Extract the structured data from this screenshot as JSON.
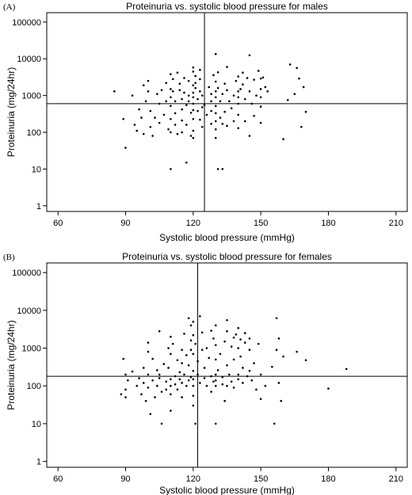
{
  "chart_data": [
    {
      "type": "scatter",
      "panel_label": "(A)",
      "title": "Proteinuria vs. systolic blood pressure for males",
      "xlabel": "Systolic blood pressure (mmHg)",
      "ylabel": "Proteinuria (mg/24hr)",
      "xlim": [
        55,
        215
      ],
      "xticks": [
        60,
        90,
        120,
        150,
        180,
        210
      ],
      "yscale": "log",
      "ylim": [
        0.7,
        180000
      ],
      "yticks": [
        1,
        10,
        100,
        1000,
        10000,
        100000
      ],
      "ytick_labels": [
        "1",
        "10",
        "100",
        "1000",
        "10000",
        "100000"
      ],
      "reference_lines": {
        "x": 125,
        "y": 600
      },
      "grid": false,
      "points": [
        [
          85,
          1300
        ],
        [
          89,
          230
        ],
        [
          90,
          38
        ],
        [
          93,
          1000
        ],
        [
          94,
          160
        ],
        [
          95,
          110
        ],
        [
          96,
          420
        ],
        [
          97,
          250
        ],
        [
          98,
          90
        ],
        [
          98,
          1900
        ],
        [
          99,
          700
        ],
        [
          100,
          2500
        ],
        [
          100,
          1300
        ],
        [
          101,
          380
        ],
        [
          101,
          140
        ],
        [
          102,
          80
        ],
        [
          103,
          250
        ],
        [
          104,
          1100
        ],
        [
          105,
          600
        ],
        [
          105,
          180
        ],
        [
          106,
          1400
        ],
        [
          107,
          300
        ],
        [
          108,
          2200
        ],
        [
          108,
          700
        ],
        [
          109,
          120
        ],
        [
          110,
          3800
        ],
        [
          110,
          1500
        ],
        [
          110,
          900
        ],
        [
          110,
          520
        ],
        [
          110,
          230
        ],
        [
          110,
          100
        ],
        [
          110,
          10
        ],
        [
          111,
          2800
        ],
        [
          111,
          1300
        ],
        [
          112,
          700
        ],
        [
          112,
          330
        ],
        [
          112,
          160
        ],
        [
          113,
          90
        ],
        [
          113,
          4200
        ],
        [
          114,
          2100
        ],
        [
          114,
          1400
        ],
        [
          115,
          800
        ],
        [
          115,
          420
        ],
        [
          115,
          210
        ],
        [
          115,
          100
        ],
        [
          116,
          1200
        ],
        [
          116,
          3000
        ],
        [
          117,
          550
        ],
        [
          117,
          160
        ],
        [
          117,
          15
        ],
        [
          118,
          2500
        ],
        [
          118,
          1000
        ],
        [
          118,
          700
        ],
        [
          119,
          340
        ],
        [
          119,
          80
        ],
        [
          120,
          5800
        ],
        [
          120,
          4500
        ],
        [
          120,
          1900
        ],
        [
          120,
          1200
        ],
        [
          120,
          900
        ],
        [
          120,
          600
        ],
        [
          120,
          400
        ],
        [
          120,
          230
        ],
        [
          120,
          110
        ],
        [
          120,
          70
        ],
        [
          121,
          3400
        ],
        [
          121,
          2200
        ],
        [
          121,
          1600
        ],
        [
          122,
          800
        ],
        [
          122,
          380
        ],
        [
          123,
          5000
        ],
        [
          123,
          2800
        ],
        [
          123,
          1300
        ],
        [
          123,
          220
        ],
        [
          124,
          1000
        ],
        [
          124,
          480
        ],
        [
          124,
          140
        ],
        [
          125,
          550
        ],
        [
          126,
          300
        ],
        [
          127,
          1700
        ],
        [
          128,
          1100
        ],
        [
          128,
          700
        ],
        [
          128,
          380
        ],
        [
          128,
          170
        ],
        [
          129,
          3600
        ],
        [
          130,
          13500
        ],
        [
          130,
          2400
        ],
        [
          130,
          1300
        ],
        [
          130,
          900
        ],
        [
          130,
          520
        ],
        [
          130,
          330
        ],
        [
          130,
          200
        ],
        [
          130,
          120
        ],
        [
          130,
          70
        ],
        [
          131,
          4300
        ],
        [
          131,
          1600
        ],
        [
          131,
          10
        ],
        [
          132,
          700
        ],
        [
          132,
          250
        ],
        [
          133,
          10
        ],
        [
          133,
          1100
        ],
        [
          133,
          170
        ],
        [
          134,
          2100
        ],
        [
          134,
          360
        ],
        [
          135,
          6000
        ],
        [
          135,
          1400
        ],
        [
          135,
          150
        ],
        [
          136,
          700
        ],
        [
          137,
          450
        ],
        [
          138,
          1000
        ],
        [
          138,
          200
        ],
        [
          139,
          2500
        ],
        [
          140,
          3300
        ],
        [
          140,
          1300
        ],
        [
          140,
          900
        ],
        [
          140,
          600
        ],
        [
          140,
          300
        ],
        [
          140,
          130
        ],
        [
          141,
          1500
        ],
        [
          142,
          4200
        ],
        [
          142,
          2000
        ],
        [
          143,
          800
        ],
        [
          143,
          200
        ],
        [
          144,
          3000
        ],
        [
          145,
          12500
        ],
        [
          145,
          1300
        ],
        [
          145,
          80
        ],
        [
          146,
          600
        ],
        [
          147,
          2700
        ],
        [
          147,
          280
        ],
        [
          148,
          1000
        ],
        [
          149,
          4700
        ],
        [
          150,
          2900
        ],
        [
          150,
          1500
        ],
        [
          150,
          900
        ],
        [
          150,
          500
        ],
        [
          150,
          180
        ],
        [
          151,
          3100
        ],
        [
          152,
          1700
        ],
        [
          153,
          1300
        ],
        [
          160,
          65
        ],
        [
          162,
          750
        ],
        [
          163,
          7000
        ],
        [
          165,
          1100
        ],
        [
          166,
          5600
        ],
        [
          167,
          2900
        ],
        [
          168,
          140
        ],
        [
          169,
          1700
        ],
        [
          170,
          360
        ]
      ]
    },
    {
      "type": "scatter",
      "panel_label": "(B)",
      "title": "Proteinuria vs. systolic blood pressure for females",
      "xlabel": "Systolic blood pressure (mmHg)",
      "ylabel": "Proteinuria (mg/24hr)",
      "xlim": [
        55,
        215
      ],
      "xticks": [
        60,
        90,
        120,
        150,
        180,
        210
      ],
      "yscale": "log",
      "ylim": [
        0.7,
        180000
      ],
      "yticks": [
        1,
        10,
        100,
        1000,
        10000,
        100000
      ],
      "ytick_labels": [
        "1",
        "10",
        "100",
        "1000",
        "10000",
        "100000"
      ],
      "reference_lines": {
        "x": 122,
        "y": 180
      },
      "grid": false,
      "points": [
        [
          88,
          60
        ],
        [
          89,
          520
        ],
        [
          90,
          200
        ],
        [
          90,
          80
        ],
        [
          90,
          50
        ],
        [
          91,
          140
        ],
        [
          93,
          240
        ],
        [
          95,
          100
        ],
        [
          96,
          160
        ],
        [
          97,
          60
        ],
        [
          98,
          300
        ],
        [
          98,
          120
        ],
        [
          99,
          40
        ],
        [
          100,
          1400
        ],
        [
          100,
          800
        ],
        [
          100,
          200
        ],
        [
          100,
          90
        ],
        [
          101,
          18
        ],
        [
          102,
          520
        ],
        [
          102,
          140
        ],
        [
          103,
          50
        ],
        [
          104,
          260
        ],
        [
          104,
          100
        ],
        [
          105,
          2800
        ],
        [
          105,
          200
        ],
        [
          105,
          160
        ],
        [
          106,
          70
        ],
        [
          106,
          10
        ],
        [
          107,
          380
        ],
        [
          108,
          130
        ],
        [
          108,
          80
        ],
        [
          109,
          1000
        ],
        [
          109,
          300
        ],
        [
          110,
          2000
        ],
        [
          110,
          700
        ],
        [
          110,
          150
        ],
        [
          110,
          100
        ],
        [
          110,
          60
        ],
        [
          110,
          22
        ],
        [
          111,
          1300
        ],
        [
          112,
          180
        ],
        [
          112,
          110
        ],
        [
          113,
          480
        ],
        [
          113,
          80
        ],
        [
          114,
          230
        ],
        [
          114,
          150
        ],
        [
          115,
          900
        ],
        [
          115,
          400
        ],
        [
          115,
          120
        ],
        [
          115,
          50
        ],
        [
          116,
          2400
        ],
        [
          116,
          200
        ],
        [
          117,
          650
        ],
        [
          117,
          100
        ],
        [
          118,
          6200
        ],
        [
          118,
          350
        ],
        [
          118,
          140
        ],
        [
          119,
          4000
        ],
        [
          119,
          1600
        ],
        [
          119,
          900
        ],
        [
          119,
          170
        ],
        [
          120,
          5000
        ],
        [
          120,
          2200
        ],
        [
          120,
          700
        ],
        [
          120,
          250
        ],
        [
          120,
          150
        ],
        [
          120,
          100
        ],
        [
          120,
          55
        ],
        [
          120,
          30
        ],
        [
          121,
          10
        ],
        [
          121,
          1300
        ],
        [
          122,
          450
        ],
        [
          122,
          200
        ],
        [
          123,
          120
        ],
        [
          123,
          7000
        ],
        [
          124,
          2600
        ],
        [
          124,
          900
        ],
        [
          125,
          300
        ],
        [
          125,
          160
        ],
        [
          126,
          1000
        ],
        [
          126,
          100
        ],
        [
          127,
          550
        ],
        [
          128,
          2900
        ],
        [
          128,
          180
        ],
        [
          128,
          70
        ],
        [
          129,
          1800
        ],
        [
          129,
          130
        ],
        [
          130,
          4000
        ],
        [
          130,
          1200
        ],
        [
          130,
          500
        ],
        [
          130,
          200
        ],
        [
          130,
          140
        ],
        [
          130,
          100
        ],
        [
          130,
          10
        ],
        [
          131,
          260
        ],
        [
          132,
          700
        ],
        [
          133,
          170
        ],
        [
          133,
          110
        ],
        [
          134,
          1500
        ],
        [
          134,
          40
        ],
        [
          135,
          5500
        ],
        [
          135,
          2800
        ],
        [
          135,
          350
        ],
        [
          135,
          100
        ],
        [
          136,
          200
        ],
        [
          137,
          1100
        ],
        [
          137,
          130
        ],
        [
          138,
          1900
        ],
        [
          138,
          500
        ],
        [
          138,
          90
        ],
        [
          139,
          2300
        ],
        [
          140,
          3400
        ],
        [
          140,
          1000
        ],
        [
          140,
          200
        ],
        [
          140,
          150
        ],
        [
          141,
          1700
        ],
        [
          141,
          600
        ],
        [
          142,
          300
        ],
        [
          142,
          120
        ],
        [
          143,
          2500
        ],
        [
          143,
          1400
        ],
        [
          144,
          180
        ],
        [
          145,
          1800
        ],
        [
          145,
          900
        ],
        [
          145,
          250
        ],
        [
          146,
          140
        ],
        [
          147,
          400
        ],
        [
          148,
          80
        ],
        [
          149,
          1300
        ],
        [
          150,
          200
        ],
        [
          150,
          45
        ],
        [
          152,
          100
        ],
        [
          155,
          320
        ],
        [
          156,
          10
        ],
        [
          157,
          6200
        ],
        [
          157,
          900
        ],
        [
          158,
          1800
        ],
        [
          158,
          120
        ],
        [
          159,
          40
        ],
        [
          160,
          600
        ],
        [
          166,
          800
        ],
        [
          170,
          480
        ],
        [
          180,
          85
        ],
        [
          188,
          280
        ]
      ]
    }
  ]
}
